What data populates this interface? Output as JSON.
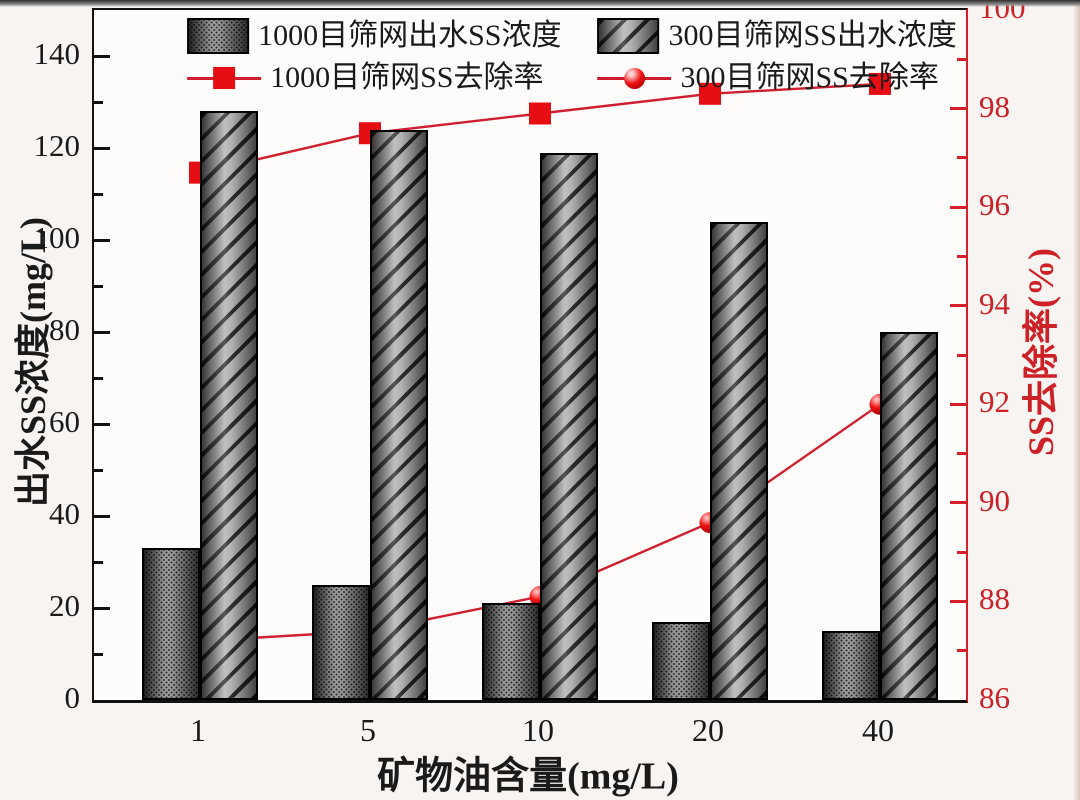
{
  "chart_data": {
    "type": "bar+line",
    "categories": [
      "1",
      "5",
      "10",
      "20",
      "40"
    ],
    "bar_series": [
      {
        "name": "1000目筛网出水SS浓度",
        "style": "dotted-dark",
        "axis": "left",
        "values": [
          33,
          25,
          21,
          17,
          15
        ]
      },
      {
        "name": "300目筛网SS出水浓度",
        "style": "diagonal-hatch",
        "axis": "left",
        "values": [
          128,
          124,
          119,
          104,
          80
        ]
      }
    ],
    "line_series": [
      {
        "name": "1000目筛网SS去除率",
        "marker": "square",
        "axis": "right",
        "values": [
          96.7,
          97.5,
          97.9,
          98.3,
          98.5
        ]
      },
      {
        "name": "300目筛网SS去除率",
        "marker": "circle",
        "axis": "right",
        "values": [
          87.2,
          87.4,
          88.1,
          89.6,
          92.0
        ]
      }
    ],
    "left_axis": {
      "label": "出水SS浓度(mg/L)",
      "min": 0,
      "max": 150,
      "major_ticks": [
        0,
        20,
        40,
        60,
        80,
        100,
        120,
        140
      ],
      "minor_step": 10
    },
    "right_axis": {
      "label": "SS去除率(%)",
      "min": 86,
      "max": 100,
      "major_ticks": [
        86,
        88,
        90,
        92,
        94,
        96,
        98,
        100
      ],
      "minor_step": 1
    },
    "xlabel": "矿物油含量(mg/L)",
    "legend_position": "top-center",
    "grid": "off",
    "colors": {
      "accent_red": "#d3202b",
      "marker_red": "#e60e13",
      "tick_label_red": "#cc2127",
      "axis_black": "#111111",
      "bar_dark": "#3c3c3c",
      "bar_light": "#9b9b9b",
      "background": "#f8f4f1"
    }
  }
}
